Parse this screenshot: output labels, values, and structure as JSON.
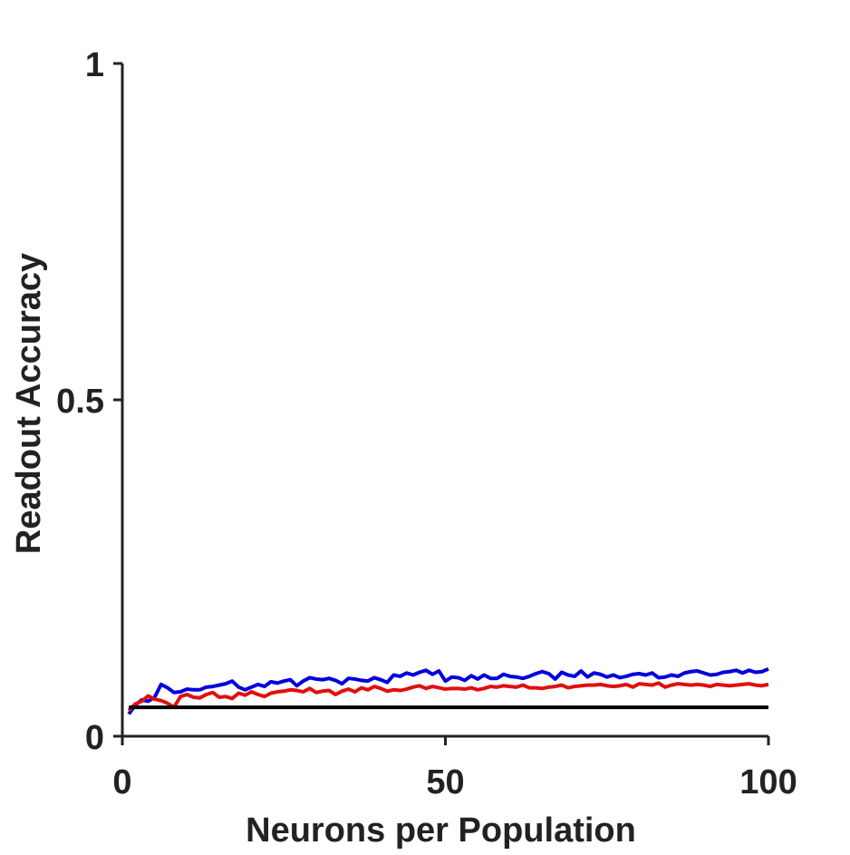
{
  "chart_data": {
    "type": "line",
    "title": "",
    "xlabel": "Neurons per Population",
    "ylabel": "Readout Accuracy",
    "xlim": [
      0,
      100
    ],
    "ylim": [
      0,
      1
    ],
    "xticks": [
      0,
      50,
      100
    ],
    "xtick_labels": [
      "0",
      "50",
      "100"
    ],
    "yticks": [
      0,
      0.5,
      1
    ],
    "ytick_labels": [
      "0",
      "0.5",
      "1"
    ],
    "grid": false,
    "legend": "none",
    "x": [
      1,
      2,
      3,
      4,
      5,
      6,
      7,
      8,
      9,
      10,
      11,
      12,
      13,
      14,
      15,
      16,
      17,
      18,
      19,
      20,
      21,
      22,
      23,
      24,
      25,
      26,
      27,
      28,
      29,
      30,
      31,
      32,
      33,
      34,
      35,
      36,
      37,
      38,
      39,
      40,
      41,
      42,
      43,
      44,
      45,
      46,
      47,
      48,
      49,
      50,
      51,
      52,
      53,
      54,
      55,
      56,
      57,
      58,
      59,
      60,
      61,
      62,
      63,
      64,
      65,
      66,
      67,
      68,
      69,
      70,
      71,
      72,
      73,
      74,
      75,
      76,
      77,
      78,
      79,
      80,
      81,
      82,
      83,
      84,
      85,
      86,
      87,
      88,
      89,
      90,
      91,
      92,
      93,
      94,
      95,
      96,
      97,
      98,
      99,
      100
    ],
    "series": [
      {
        "color": "#0000dd",
        "values": [
          0.033,
          0.046,
          0.054,
          0.052,
          0.058,
          0.077,
          0.072,
          0.065,
          0.066,
          0.07,
          0.069,
          0.069,
          0.073,
          0.074,
          0.076,
          0.078,
          0.082,
          0.073,
          0.069,
          0.073,
          0.077,
          0.074,
          0.081,
          0.079,
          0.082,
          0.084,
          0.075,
          0.082,
          0.087,
          0.085,
          0.084,
          0.086,
          0.083,
          0.078,
          0.086,
          0.085,
          0.083,
          0.082,
          0.087,
          0.084,
          0.08,
          0.091,
          0.089,
          0.094,
          0.091,
          0.095,
          0.098,
          0.092,
          0.097,
          0.082,
          0.088,
          0.087,
          0.083,
          0.09,
          0.085,
          0.091,
          0.086,
          0.086,
          0.092,
          0.089,
          0.088,
          0.086,
          0.089,
          0.093,
          0.096,
          0.093,
          0.085,
          0.095,
          0.091,
          0.089,
          0.097,
          0.088,
          0.094,
          0.092,
          0.088,
          0.091,
          0.087,
          0.089,
          0.092,
          0.093,
          0.091,
          0.094,
          0.087,
          0.088,
          0.091,
          0.089,
          0.094,
          0.096,
          0.097,
          0.094,
          0.091,
          0.092,
          0.095,
          0.096,
          0.098,
          0.094,
          0.098,
          0.095,
          0.096,
          0.1
        ]
      },
      {
        "color": "#e01010",
        "values": [
          0.038,
          0.048,
          0.052,
          0.06,
          0.055,
          0.053,
          0.049,
          0.043,
          0.059,
          0.062,
          0.058,
          0.057,
          0.062,
          0.065,
          0.058,
          0.059,
          0.056,
          0.064,
          0.061,
          0.066,
          0.062,
          0.059,
          0.064,
          0.066,
          0.067,
          0.069,
          0.068,
          0.066,
          0.071,
          0.065,
          0.067,
          0.068,
          0.062,
          0.067,
          0.07,
          0.066,
          0.072,
          0.069,
          0.074,
          0.071,
          0.067,
          0.069,
          0.068,
          0.07,
          0.073,
          0.075,
          0.071,
          0.074,
          0.072,
          0.07,
          0.071,
          0.071,
          0.07,
          0.072,
          0.069,
          0.071,
          0.074,
          0.073,
          0.075,
          0.074,
          0.073,
          0.076,
          0.072,
          0.072,
          0.071,
          0.073,
          0.074,
          0.076,
          0.072,
          0.074,
          0.075,
          0.076,
          0.076,
          0.077,
          0.075,
          0.074,
          0.075,
          0.077,
          0.073,
          0.078,
          0.077,
          0.076,
          0.079,
          0.073,
          0.076,
          0.078,
          0.077,
          0.076,
          0.077,
          0.076,
          0.074,
          0.077,
          0.076,
          0.075,
          0.076,
          0.077,
          0.078,
          0.076,
          0.075,
          0.077
        ]
      },
      {
        "color": "#000000",
        "values": [
          0.043,
          0.043,
          0.043,
          0.043,
          0.043,
          0.043,
          0.043,
          0.043,
          0.043,
          0.043,
          0.043,
          0.043,
          0.043,
          0.043,
          0.043,
          0.043,
          0.043,
          0.043,
          0.043,
          0.043,
          0.043,
          0.043,
          0.043,
          0.043,
          0.043,
          0.043,
          0.043,
          0.043,
          0.043,
          0.043,
          0.043,
          0.043,
          0.043,
          0.043,
          0.043,
          0.043,
          0.043,
          0.043,
          0.043,
          0.043,
          0.043,
          0.043,
          0.043,
          0.043,
          0.043,
          0.043,
          0.043,
          0.043,
          0.043,
          0.043,
          0.043,
          0.043,
          0.043,
          0.043,
          0.043,
          0.043,
          0.043,
          0.043,
          0.043,
          0.043,
          0.043,
          0.043,
          0.043,
          0.043,
          0.043,
          0.043,
          0.043,
          0.043,
          0.043,
          0.043,
          0.043,
          0.043,
          0.043,
          0.043,
          0.043,
          0.043,
          0.043,
          0.043,
          0.043,
          0.043,
          0.043,
          0.043,
          0.043,
          0.043,
          0.043,
          0.043,
          0.043,
          0.043,
          0.043,
          0.043,
          0.043,
          0.043,
          0.043,
          0.043,
          0.043,
          0.043,
          0.043,
          0.043,
          0.043,
          0.043
        ]
      }
    ]
  }
}
